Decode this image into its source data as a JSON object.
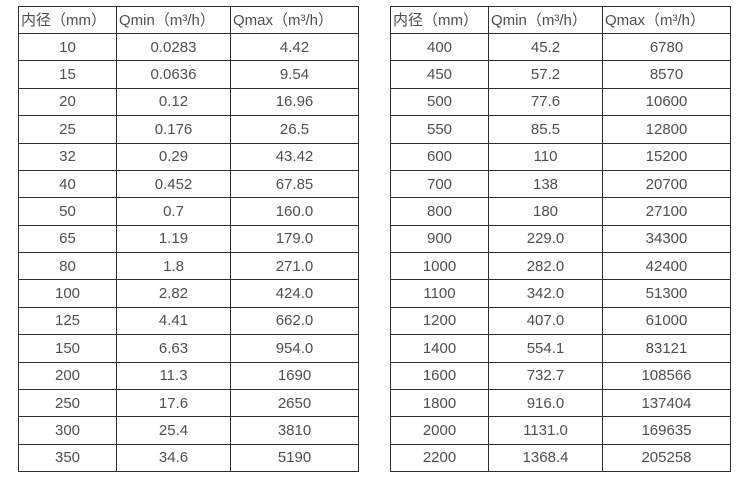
{
  "page": {
    "background": "#ffffff",
    "border_color": "#2f2f2f",
    "text_color": "#4f4f4f"
  },
  "tables": [
    {
      "name": "diameter-flow-table-left",
      "headers": [
        "内径（mm）",
        "Qmin（m³/h）",
        "Qmax（m³/h）"
      ],
      "rows": [
        [
          "10",
          "0.0283",
          "4.42"
        ],
        [
          "15",
          "0.0636",
          "9.54"
        ],
        [
          "20",
          "0.12",
          "16.96"
        ],
        [
          "25",
          "0.176",
          "26.5"
        ],
        [
          "32",
          "0.29",
          "43.42"
        ],
        [
          "40",
          "0.452",
          "67.85"
        ],
        [
          "50",
          "0.7",
          "160.0"
        ],
        [
          "65",
          "1.19",
          "179.0"
        ],
        [
          "80",
          "1.8",
          "271.0"
        ],
        [
          "100",
          "2.82",
          "424.0"
        ],
        [
          "125",
          "4.41",
          "662.0"
        ],
        [
          "150",
          "6.63",
          "954.0"
        ],
        [
          "200",
          "11.3",
          "1690"
        ],
        [
          "250",
          "17.6",
          "2650"
        ],
        [
          "300",
          "25.4",
          "3810"
        ],
        [
          "350",
          "34.6",
          "5190"
        ]
      ]
    },
    {
      "name": "diameter-flow-table-right",
      "headers": [
        "内径（mm）",
        "Qmin（m³/h）",
        "Qmax（m³/h）"
      ],
      "rows": [
        [
          "400",
          "45.2",
          "6780"
        ],
        [
          "450",
          "57.2",
          "8570"
        ],
        [
          "500",
          "77.6",
          "10600"
        ],
        [
          "550",
          "85.5",
          "12800"
        ],
        [
          "600",
          "110",
          "15200"
        ],
        [
          "700",
          "138",
          "20700"
        ],
        [
          "800",
          "180",
          "27100"
        ],
        [
          "900",
          "229.0",
          "34300"
        ],
        [
          "1000",
          "282.0",
          "42400"
        ],
        [
          "1100",
          "342.0",
          "51300"
        ],
        [
          "1200",
          "407.0",
          "61000"
        ],
        [
          "1400",
          "554.1",
          "83121"
        ],
        [
          "1600",
          "732.7",
          "108566"
        ],
        [
          "1800",
          "916.0",
          "137404"
        ],
        [
          "2000",
          "1131.0",
          "169635"
        ],
        [
          "2200",
          "1368.4",
          "205258"
        ]
      ]
    }
  ],
  "chart_data": [
    {
      "type": "table",
      "title": "",
      "columns": [
        "内径（mm）",
        "Qmin（m³/h）",
        "Qmax（m³/h）"
      ],
      "rows": [
        [
          10,
          0.0283,
          4.42
        ],
        [
          15,
          0.0636,
          9.54
        ],
        [
          20,
          0.12,
          16.96
        ],
        [
          25,
          0.176,
          26.5
        ],
        [
          32,
          0.29,
          43.42
        ],
        [
          40,
          0.452,
          67.85
        ],
        [
          50,
          0.7,
          160.0
        ],
        [
          65,
          1.19,
          179.0
        ],
        [
          80,
          1.8,
          271.0
        ],
        [
          100,
          2.82,
          424.0
        ],
        [
          125,
          4.41,
          662.0
        ],
        [
          150,
          6.63,
          954.0
        ],
        [
          200,
          11.3,
          1690
        ],
        [
          250,
          17.6,
          2650
        ],
        [
          300,
          25.4,
          3810
        ],
        [
          350,
          34.6,
          5190
        ]
      ]
    },
    {
      "type": "table",
      "title": "",
      "columns": [
        "内径（mm）",
        "Qmin（m³/h）",
        "Qmax（m³/h）"
      ],
      "rows": [
        [
          400,
          45.2,
          6780
        ],
        [
          450,
          57.2,
          8570
        ],
        [
          500,
          77.6,
          10600
        ],
        [
          550,
          85.5,
          12800
        ],
        [
          600,
          110,
          15200
        ],
        [
          700,
          138,
          20700
        ],
        [
          800,
          180,
          27100
        ],
        [
          900,
          229.0,
          34300
        ],
        [
          1000,
          282.0,
          42400
        ],
        [
          1100,
          342.0,
          51300
        ],
        [
          1200,
          407.0,
          61000
        ],
        [
          1400,
          554.1,
          83121
        ],
        [
          1600,
          732.7,
          108566
        ],
        [
          1800,
          916.0,
          137404
        ],
        [
          2000,
          1131.0,
          169635
        ],
        [
          2200,
          1368.4,
          205258
        ]
      ]
    }
  ]
}
